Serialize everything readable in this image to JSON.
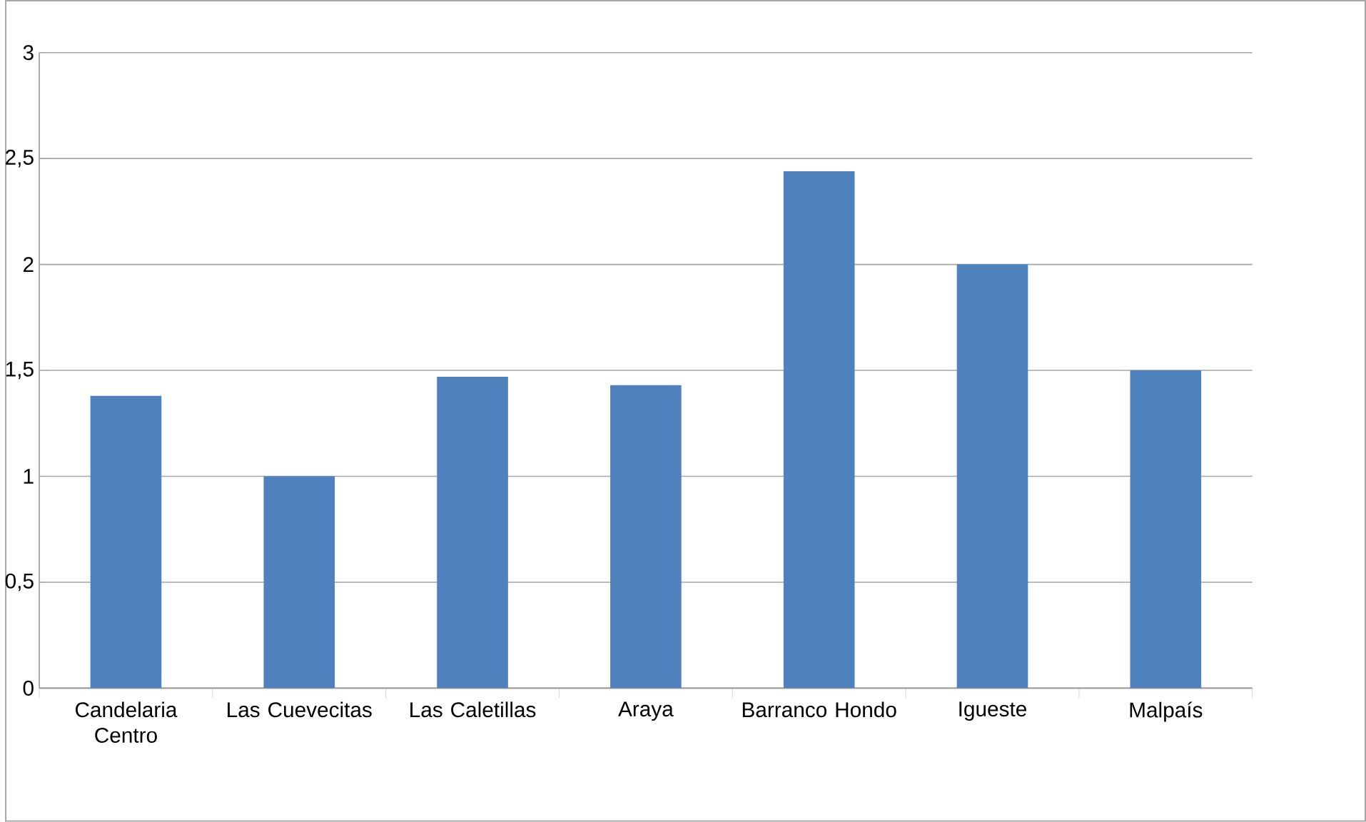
{
  "chart_data": {
    "type": "bar",
    "categories": [
      "Candelaria Centro",
      "Las Cuevecitas",
      "Las Caletillas",
      "Araya",
      "Barranco Hondo",
      "Igueste",
      "Malpaís"
    ],
    "values": [
      1.38,
      1.0,
      1.47,
      1.43,
      2.44,
      2.0,
      1.5
    ],
    "color": "#4f81bd",
    "ylim": [
      0,
      3
    ],
    "yticks": [
      0,
      {
        "value": 0.5,
        "label": "0,5"
      },
      1,
      {
        "value": 1.5,
        "label": "1,5"
      },
      2,
      {
        "value": 2.5,
        "label": "2,5"
      },
      3
    ],
    "grid": "y"
  }
}
